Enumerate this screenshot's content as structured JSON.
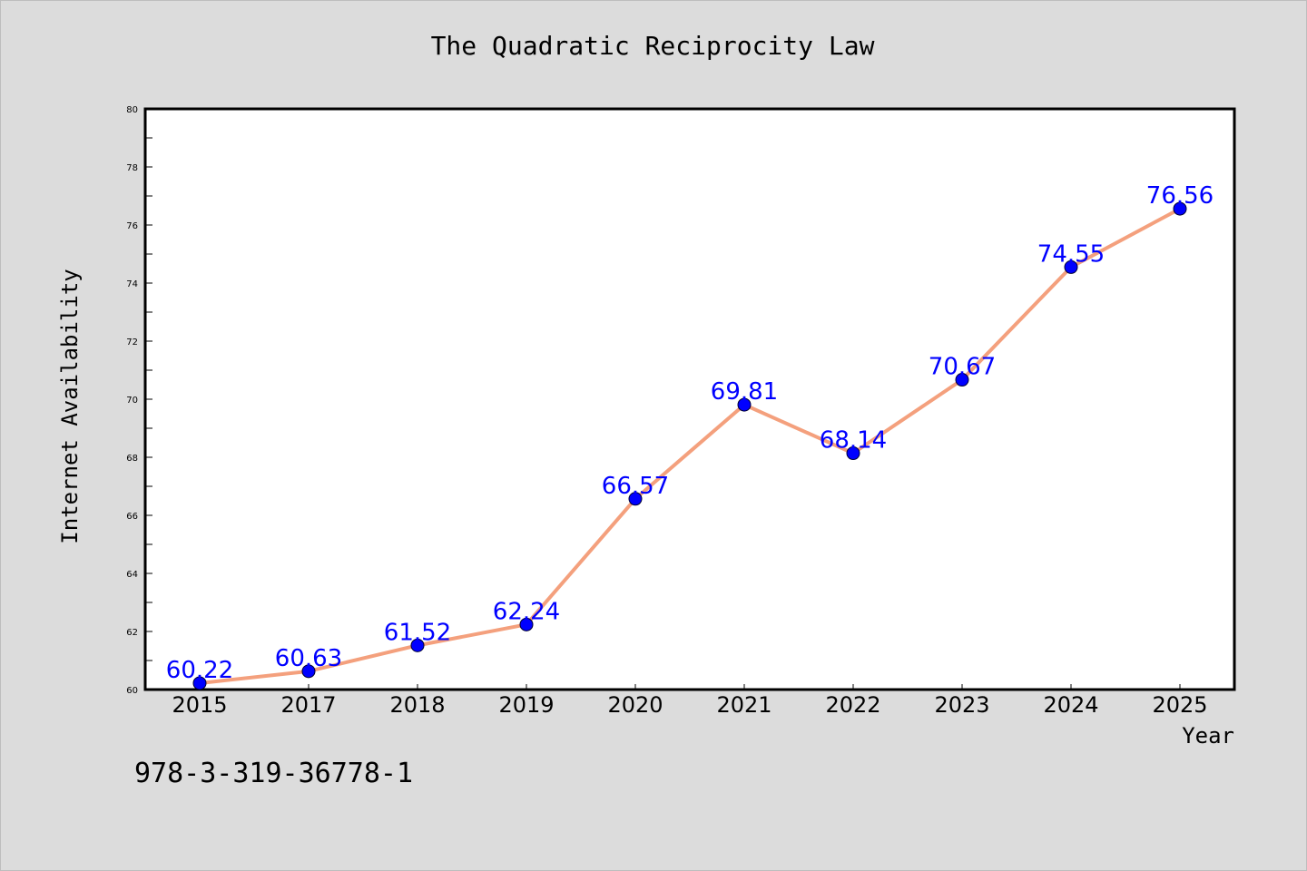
{
  "chart_data": {
    "type": "line",
    "title": "The Quadratic Reciprocity Law",
    "xlabel": "Year",
    "ylabel": "Internet Availability",
    "categories": [
      "2015",
      "2017",
      "2018",
      "2019",
      "2020",
      "2021",
      "2022",
      "2023",
      "2024",
      "2025"
    ],
    "series": [
      {
        "values": [
          60.22,
          60.63,
          61.52,
          62.24,
          66.57,
          69.81,
          68.14,
          70.67,
          74.55,
          76.56
        ],
        "labels": [
          "60.22",
          "60.63",
          "61.52",
          "62.24",
          "66.57",
          "69.81",
          "68.14",
          "70.67",
          "74.55",
          "76.56"
        ],
        "line_color": "#f4a07d",
        "marker_color": "#0000ff"
      }
    ],
    "ylim": [
      60,
      80
    ],
    "yticks": [
      "60",
      "62",
      "64",
      "66",
      "68",
      "70",
      "72",
      "74",
      "76",
      "78",
      "80"
    ],
    "grid": false,
    "legend": "none"
  },
  "footer": {
    "text": "978-3-319-36778-1"
  },
  "colors": {
    "background": "#dcdcdc",
    "plot_background": "#ffffff",
    "line": "#f4a07d",
    "marker": "#0000ff",
    "data_label": "#0000ff"
  }
}
